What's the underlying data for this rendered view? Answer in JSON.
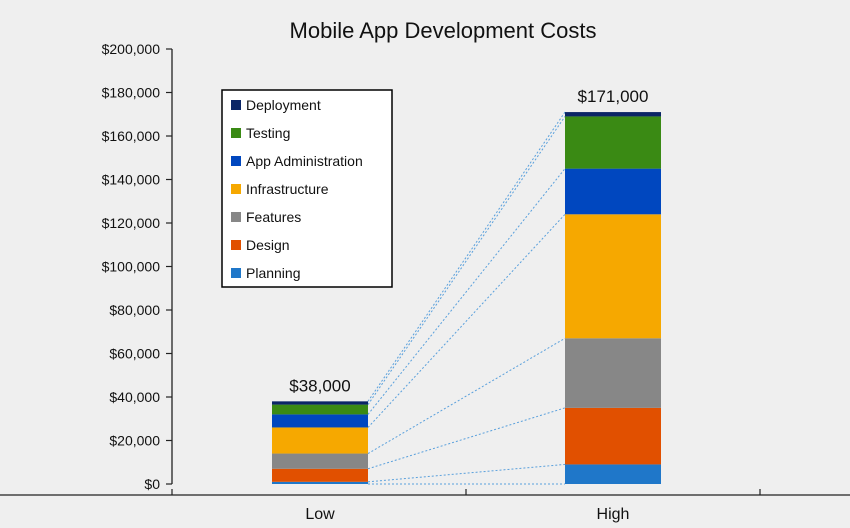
{
  "chart_data": {
    "type": "bar",
    "title": "Mobile App Development Costs",
    "categories": [
      "Low",
      "High"
    ],
    "ylim": [
      0,
      200000
    ],
    "y_ticks": [
      "$0",
      "$20,000",
      "$40,000",
      "$60,000",
      "$80,000",
      "$100,000",
      "$120,000",
      "$140,000",
      "$160,000",
      "$180,000",
      "$200,000"
    ],
    "y_tick_values": [
      0,
      20000,
      40000,
      60000,
      80000,
      100000,
      120000,
      140000,
      160000,
      180000,
      200000
    ],
    "totals": [
      38000,
      171000
    ],
    "total_labels": [
      "$38,000",
      "$171,000"
    ],
    "series": [
      {
        "name": "Planning",
        "color": "#1f77c9",
        "values": [
          1000,
          9000
        ]
      },
      {
        "name": "Design",
        "color": "#e15000",
        "values": [
          6000,
          26000
        ]
      },
      {
        "name": "Features",
        "color": "#878787",
        "values": [
          7000,
          32000
        ]
      },
      {
        "name": "Infrastructure",
        "color": "#f6a800",
        "values": [
          12000,
          57000
        ]
      },
      {
        "name": "App Administration",
        "color": "#0047bf",
        "values": [
          6000,
          21000
        ]
      },
      {
        "name": "Testing",
        "color": "#3a8a14",
        "values": [
          4500,
          24000
        ]
      },
      {
        "name": "Deployment",
        "color": "#0b2566",
        "values": [
          1500,
          2000
        ]
      }
    ],
    "legend": {
      "position": "top-left",
      "order": [
        "Deployment",
        "Testing",
        "App Administration",
        "Infrastructure",
        "Features",
        "Design",
        "Planning"
      ]
    },
    "connector_lines": {
      "style": "dotted",
      "color": "#5aa0dc"
    },
    "grid": false
  }
}
